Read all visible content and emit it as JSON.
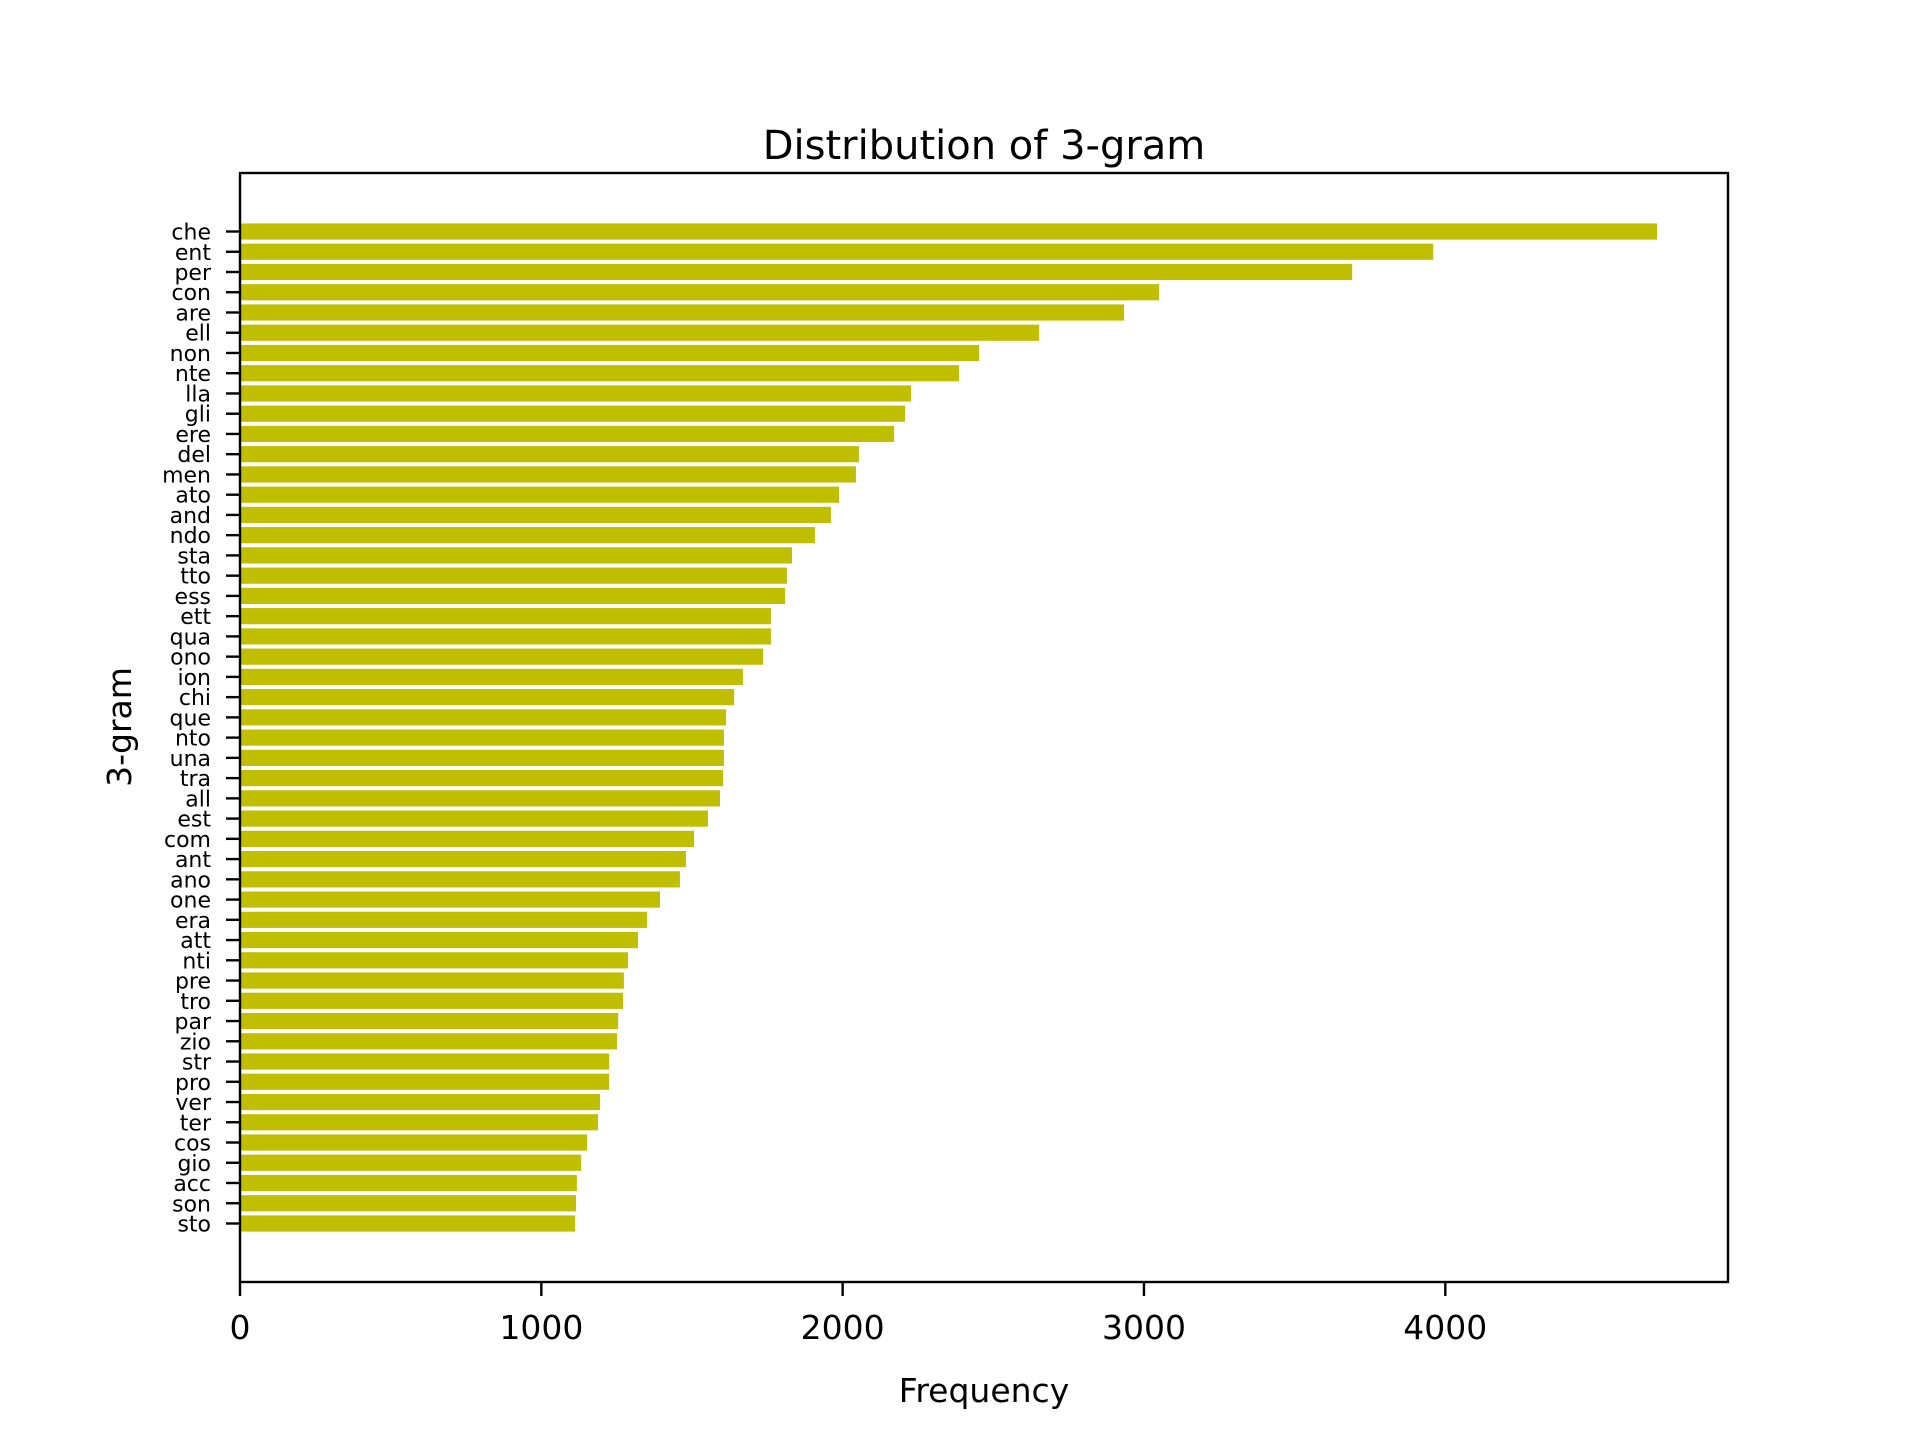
{
  "figure": {
    "title": "Distribution of 3-gram",
    "xlabel": "Frequency",
    "ylabel": "3-gram",
    "bar_color": "#bfbf00",
    "axis_color": "#000000",
    "background": "#ffffff"
  },
  "chart_data": {
    "type": "bar",
    "orientation": "horizontal",
    "title": "Distribution of 3-gram",
    "xlabel": "Frequency",
    "ylabel": "3-gram",
    "xlim": [
      0,
      4943
    ],
    "xticks": [
      0,
      1000,
      2000,
      3000,
      4000
    ],
    "xtick_labels": [
      "0",
      "1000",
      "2000",
      "3000",
      "4000"
    ],
    "grid": false,
    "legend": null,
    "categories": [
      "che",
      "ent",
      "per",
      "con",
      "are",
      "ell",
      "non",
      "nte",
      "lla",
      "gli",
      "ere",
      "del",
      "men",
      "ato",
      "and",
      "ndo",
      "sta",
      "tto",
      "ess",
      "ett",
      "qua",
      "ono",
      "ion",
      "chi",
      "que",
      "nto",
      "una",
      "tra",
      "all",
      "est",
      "com",
      "ant",
      "ano",
      "one",
      "era",
      "att",
      "nti",
      "pre",
      "tro",
      "par",
      "zio",
      "str",
      "pro",
      "ver",
      "ter",
      "cos",
      "gio",
      "acc",
      "son",
      "sto"
    ],
    "values": [
      4703,
      3960,
      3691,
      3050,
      2934,
      2652,
      2453,
      2386,
      2227,
      2207,
      2171,
      2054,
      2044,
      1988,
      1961,
      1908,
      1832,
      1815,
      1809,
      1762,
      1762,
      1736,
      1669,
      1640,
      1613,
      1606,
      1606,
      1603,
      1593,
      1553,
      1507,
      1480,
      1460,
      1394,
      1351,
      1321,
      1288,
      1274,
      1271,
      1255,
      1251,
      1225,
      1225,
      1195,
      1188,
      1152,
      1132,
      1118,
      1115,
      1112
    ]
  }
}
